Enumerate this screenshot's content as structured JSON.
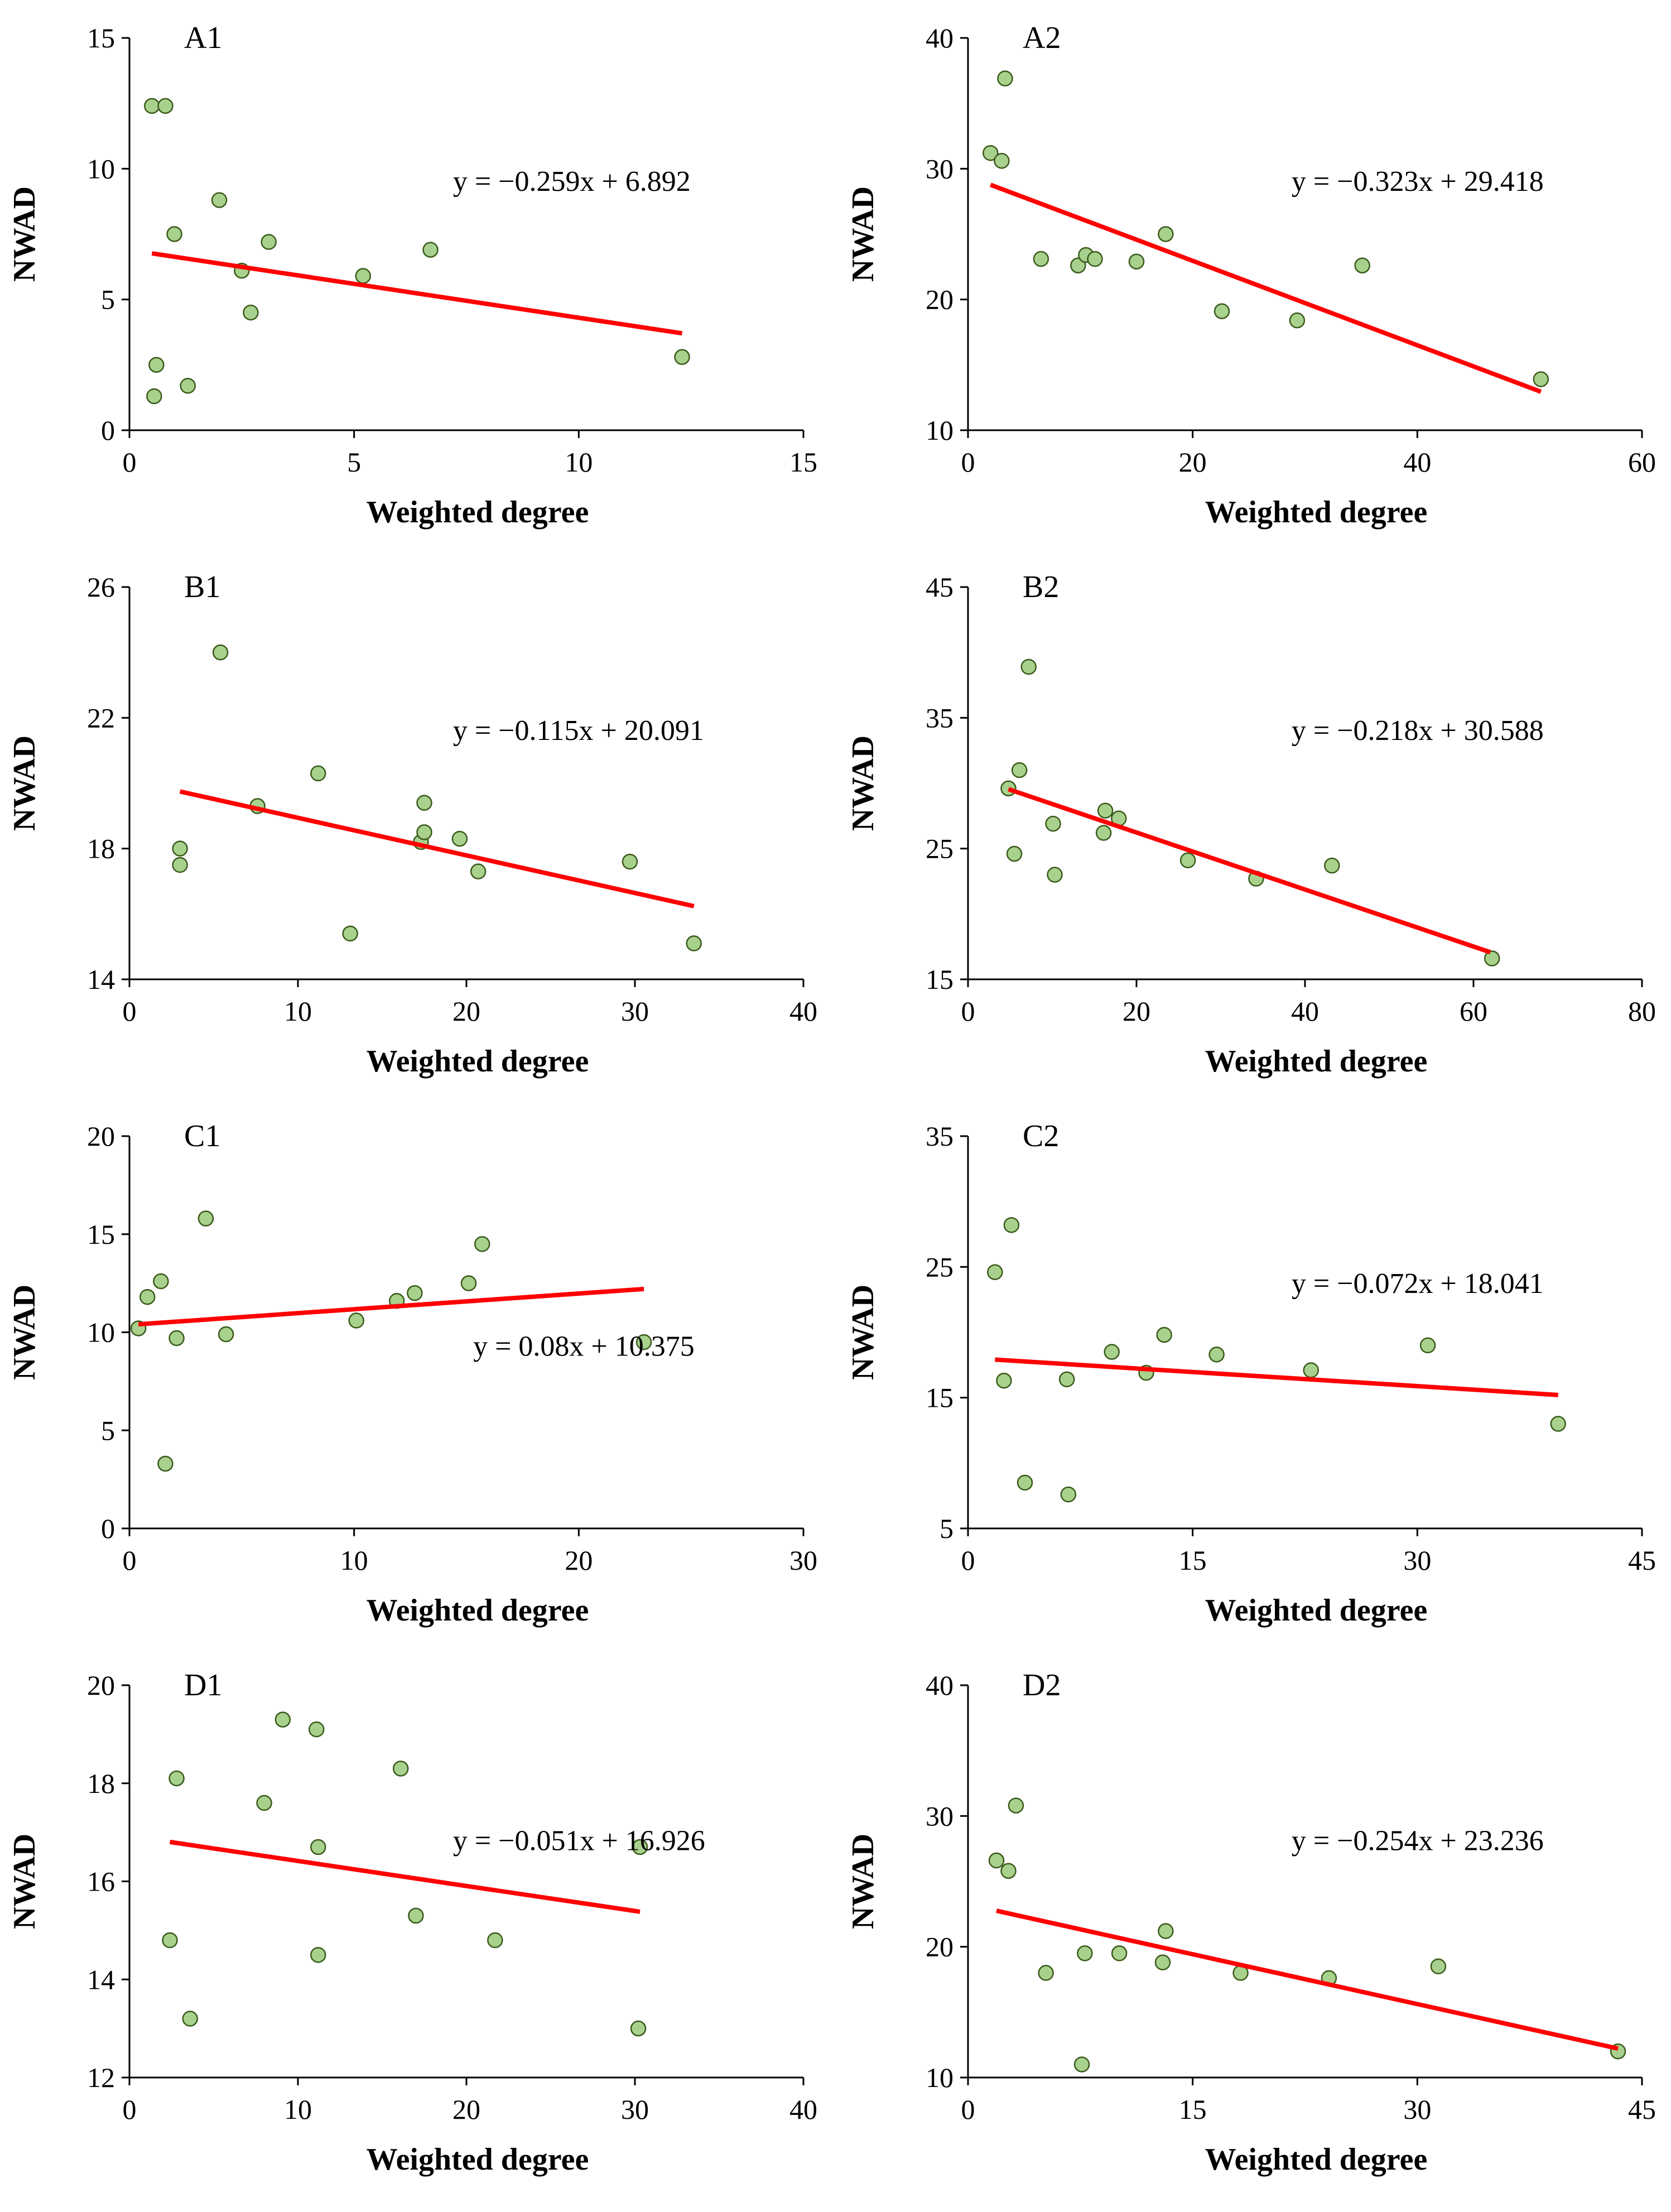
{
  "colors": {
    "point_fill": "#a9d18e",
    "point_stroke": "#3a5a1a",
    "trend": "#ff0000",
    "axis": "#000000"
  },
  "chart_data": [
    {
      "type": "scatter",
      "panel": "A1",
      "title": "A1",
      "xlabel": "Weighted degree",
      "ylabel": "NWAD",
      "xlim": [
        0,
        15
      ],
      "ylim": [
        0,
        15
      ],
      "xticks": [
        0,
        5,
        10,
        15
      ],
      "yticks": [
        0,
        5,
        10,
        15
      ],
      "x": [
        0.5,
        0.8,
        0.6,
        0.55,
        1.0,
        1.3,
        2.0,
        2.5,
        2.7,
        3.1,
        5.2,
        6.7,
        12.3
      ],
      "y": [
        12.4,
        12.4,
        2.5,
        1.3,
        7.5,
        1.7,
        8.8,
        6.1,
        4.5,
        7.2,
        5.9,
        6.9,
        2.8
      ],
      "trendline": {
        "equation": "y = −0.259x + 6.892",
        "slope": -0.259,
        "intercept": 6.892,
        "x_range": [
          0.5,
          12.3
        ]
      }
    },
    {
      "type": "scatter",
      "panel": "A2",
      "title": "A2",
      "xlabel": "Weighted degree",
      "ylabel": "NWAD",
      "xlim": [
        0,
        60
      ],
      "ylim": [
        10,
        40
      ],
      "xticks": [
        0,
        20,
        40,
        60
      ],
      "yticks": [
        10,
        20,
        30,
        40
      ],
      "x": [
        2,
        3,
        3.3,
        6.5,
        9.8,
        10.5,
        11.3,
        15,
        17.6,
        22.6,
        29.3,
        35.1,
        51
      ],
      "y": [
        31.2,
        30.6,
        36.9,
        23.1,
        22.6,
        23.4,
        23.1,
        22.9,
        25.0,
        19.1,
        18.4,
        22.6,
        13.9
      ],
      "trendline": {
        "equation": "y = −0.323x + 29.418",
        "slope": -0.323,
        "intercept": 29.418,
        "x_range": [
          2,
          51
        ]
      }
    },
    {
      "type": "scatter",
      "panel": "B1",
      "title": "B1",
      "xlabel": "Weighted degree",
      "ylabel": "NWAD",
      "xlim": [
        0,
        40
      ],
      "ylim": [
        14,
        26
      ],
      "xticks": [
        0,
        10,
        20,
        30,
        40
      ],
      "yticks": [
        14,
        18,
        22,
        26
      ],
      "x": [
        3,
        3,
        5.4,
        7.6,
        11.2,
        13.1,
        17.3,
        17.5,
        17.5,
        19.6,
        20.7,
        29.7,
        33.5
      ],
      "y": [
        18.0,
        17.5,
        24.0,
        19.3,
        20.3,
        15.4,
        18.2,
        18.5,
        19.4,
        18.3,
        17.3,
        17.6,
        15.1
      ],
      "trendline": {
        "equation": "y = −0.115x + 20.091",
        "slope": -0.115,
        "intercept": 20.091,
        "x_range": [
          3,
          33.5
        ]
      }
    },
    {
      "type": "scatter",
      "panel": "B2",
      "title": "B2",
      "xlabel": "Weighted degree",
      "ylabel": "NWAD",
      "xlim": [
        0,
        80
      ],
      "ylim": [
        15,
        45
      ],
      "xticks": [
        0,
        20,
        40,
        60,
        80
      ],
      "yticks": [
        15,
        25,
        35,
        45
      ],
      "x": [
        4.8,
        5.5,
        6.1,
        7.2,
        10.1,
        10.3,
        16.1,
        16.3,
        17.9,
        26.1,
        34.2,
        43.2,
        62.2
      ],
      "y": [
        29.6,
        24.6,
        31.0,
        38.9,
        26.9,
        23.0,
        26.2,
        27.9,
        27.3,
        24.1,
        22.7,
        23.7,
        16.6
      ],
      "trendline": {
        "equation": "y = −0.218x + 30.588",
        "slope": -0.218,
        "intercept": 30.588,
        "x_range": [
          4.8,
          62
        ]
      }
    },
    {
      "type": "scatter",
      "panel": "C1",
      "title": "C1",
      "xlabel": "Weighted degree",
      "ylabel": "NWAD",
      "xlim": [
        0,
        30
      ],
      "ylim": [
        0,
        20
      ],
      "xticks": [
        0,
        10,
        20,
        30
      ],
      "yticks": [
        0,
        5,
        10,
        15,
        20
      ],
      "x": [
        0.4,
        0.8,
        1.4,
        1.6,
        2.1,
        3.4,
        4.3,
        10.1,
        11.9,
        12.7,
        15.1,
        15.7,
        22.9
      ],
      "y": [
        10.2,
        11.8,
        12.6,
        3.3,
        9.7,
        15.8,
        9.9,
        10.6,
        11.6,
        12.0,
        12.5,
        14.5,
        9.5
      ],
      "trendline": {
        "equation": "y = 0.08x + 10.375",
        "slope": 0.08,
        "intercept": 10.375,
        "x_range": [
          0.4,
          22.9
        ]
      }
    },
    {
      "type": "scatter",
      "panel": "C2",
      "title": "C2",
      "xlabel": "Weighted degree",
      "ylabel": "NWAD",
      "xlim": [
        0,
        45
      ],
      "ylim": [
        5,
        35
      ],
      "xticks": [
        0,
        15,
        30,
        45
      ],
      "yticks": [
        5,
        15,
        25,
        35
      ],
      "x": [
        1.8,
        2.4,
        2.9,
        3.8,
        6.6,
        6.7,
        9.6,
        11.9,
        13.1,
        16.6,
        22.9,
        30.7,
        39.4
      ],
      "y": [
        24.6,
        16.3,
        28.2,
        8.5,
        16.4,
        7.6,
        18.5,
        16.9,
        19.8,
        18.3,
        17.1,
        19.0,
        13.0
      ],
      "trendline": {
        "equation": "y = −0.072x + 18.041",
        "slope": -0.072,
        "intercept": 18.041,
        "x_range": [
          1.8,
          39.4
        ]
      }
    },
    {
      "type": "scatter",
      "panel": "D1",
      "title": "D1",
      "xlabel": "Weighted degree",
      "ylabel": "NWAD",
      "xlim": [
        0,
        40
      ],
      "ylim": [
        12,
        20
      ],
      "xticks": [
        0,
        10,
        20,
        30,
        40
      ],
      "yticks": [
        12,
        14,
        16,
        18,
        20
      ],
      "x": [
        2.4,
        2.8,
        3.6,
        8.0,
        9.1,
        11.1,
        11.2,
        11.2,
        16.1,
        17.0,
        21.7,
        30.2,
        30.3
      ],
      "y": [
        14.8,
        18.1,
        13.2,
        17.6,
        19.3,
        19.1,
        16.7,
        14.5,
        18.3,
        15.3,
        14.8,
        13.0,
        16.7
      ],
      "trendline": {
        "equation": "y = −0.051x + 16.926",
        "slope": -0.051,
        "intercept": 16.926,
        "x_range": [
          2.4,
          30.3
        ]
      }
    },
    {
      "type": "scatter",
      "panel": "D2",
      "title": "D2",
      "xlabel": "Weighted degree",
      "ylabel": "NWAD",
      "xlim": [
        0,
        45
      ],
      "ylim": [
        10,
        40
      ],
      "xticks": [
        0,
        15,
        30,
        45
      ],
      "yticks": [
        10,
        20,
        30,
        40
      ],
      "x": [
        1.9,
        2.7,
        3.2,
        5.2,
        7.6,
        7.8,
        10.1,
        13.0,
        13.2,
        18.2,
        24.1,
        31.4,
        43.4
      ],
      "y": [
        26.6,
        25.8,
        30.8,
        18.0,
        11.0,
        19.5,
        19.5,
        18.8,
        21.2,
        18.0,
        17.6,
        18.5,
        12.0
      ],
      "trendline": {
        "equation": "y = −0.254x + 23.236",
        "slope": -0.254,
        "intercept": 23.236,
        "x_range": [
          1.9,
          43.4
        ]
      }
    }
  ]
}
